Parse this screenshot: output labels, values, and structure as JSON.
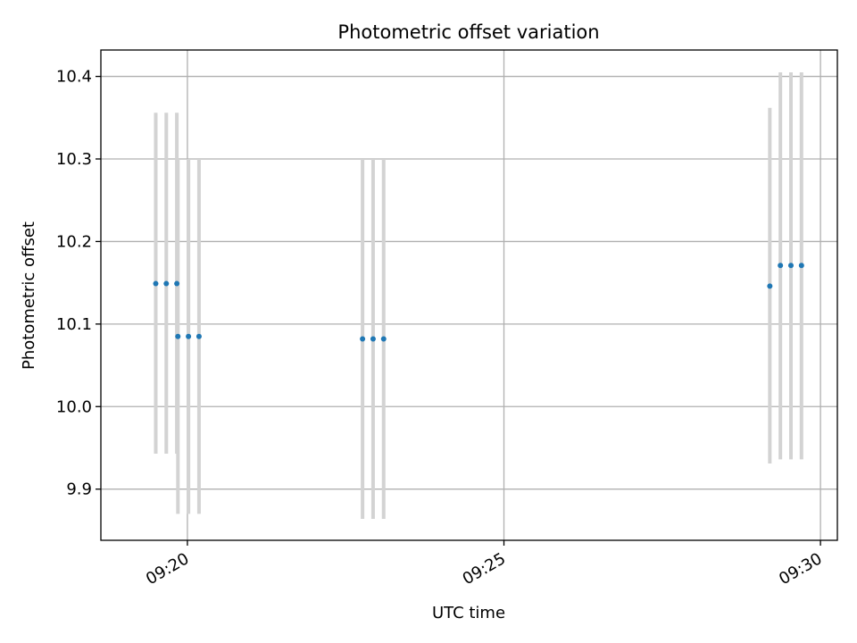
{
  "chart_data": {
    "type": "scatter",
    "title": "Photometric offset variation",
    "xlabel": "UTC time",
    "ylabel": "Photometric offset",
    "x_ticks": [
      "09:20",
      "09:25",
      "09:30"
    ],
    "y_ticks": [
      "9.9",
      "10.0",
      "10.1",
      "10.2",
      "10.3",
      "10.4"
    ],
    "xlim": [
      "09:18:38",
      "09:30:16"
    ],
    "ylim": [
      9.838,
      10.432
    ],
    "grid": true,
    "colors": {
      "points": "#1f77b4",
      "errorbars": "#d3d3d3",
      "grid": "#b0b0b0"
    },
    "points": [
      {
        "x": "09:19:30",
        "y": 10.149,
        "yerr_low": 9.943,
        "yerr_high": 10.356
      },
      {
        "x": "09:19:40",
        "y": 10.149,
        "yerr_low": 9.943,
        "yerr_high": 10.356
      },
      {
        "x": "09:19:50",
        "y": 10.149,
        "yerr_low": 9.943,
        "yerr_high": 10.356
      },
      {
        "x": "09:19:51",
        "y": 10.085,
        "yerr_low": 9.87,
        "yerr_high": 10.3
      },
      {
        "x": "09:20:01",
        "y": 10.085,
        "yerr_low": 9.87,
        "yerr_high": 10.3
      },
      {
        "x": "09:20:11",
        "y": 10.085,
        "yerr_low": 9.87,
        "yerr_high": 10.3
      },
      {
        "x": "09:22:46",
        "y": 10.082,
        "yerr_low": 9.864,
        "yerr_high": 10.3
      },
      {
        "x": "09:22:56",
        "y": 10.082,
        "yerr_low": 9.864,
        "yerr_high": 10.3
      },
      {
        "x": "09:23:06",
        "y": 10.082,
        "yerr_low": 9.864,
        "yerr_high": 10.3
      },
      {
        "x": "09:29:12",
        "y": 10.146,
        "yerr_low": 9.931,
        "yerr_high": 10.362
      },
      {
        "x": "09:29:22",
        "y": 10.171,
        "yerr_low": 9.936,
        "yerr_high": 10.405
      },
      {
        "x": "09:29:32",
        "y": 10.171,
        "yerr_low": 9.936,
        "yerr_high": 10.405
      },
      {
        "x": "09:29:42",
        "y": 10.171,
        "yerr_low": 9.936,
        "yerr_high": 10.405
      }
    ]
  }
}
